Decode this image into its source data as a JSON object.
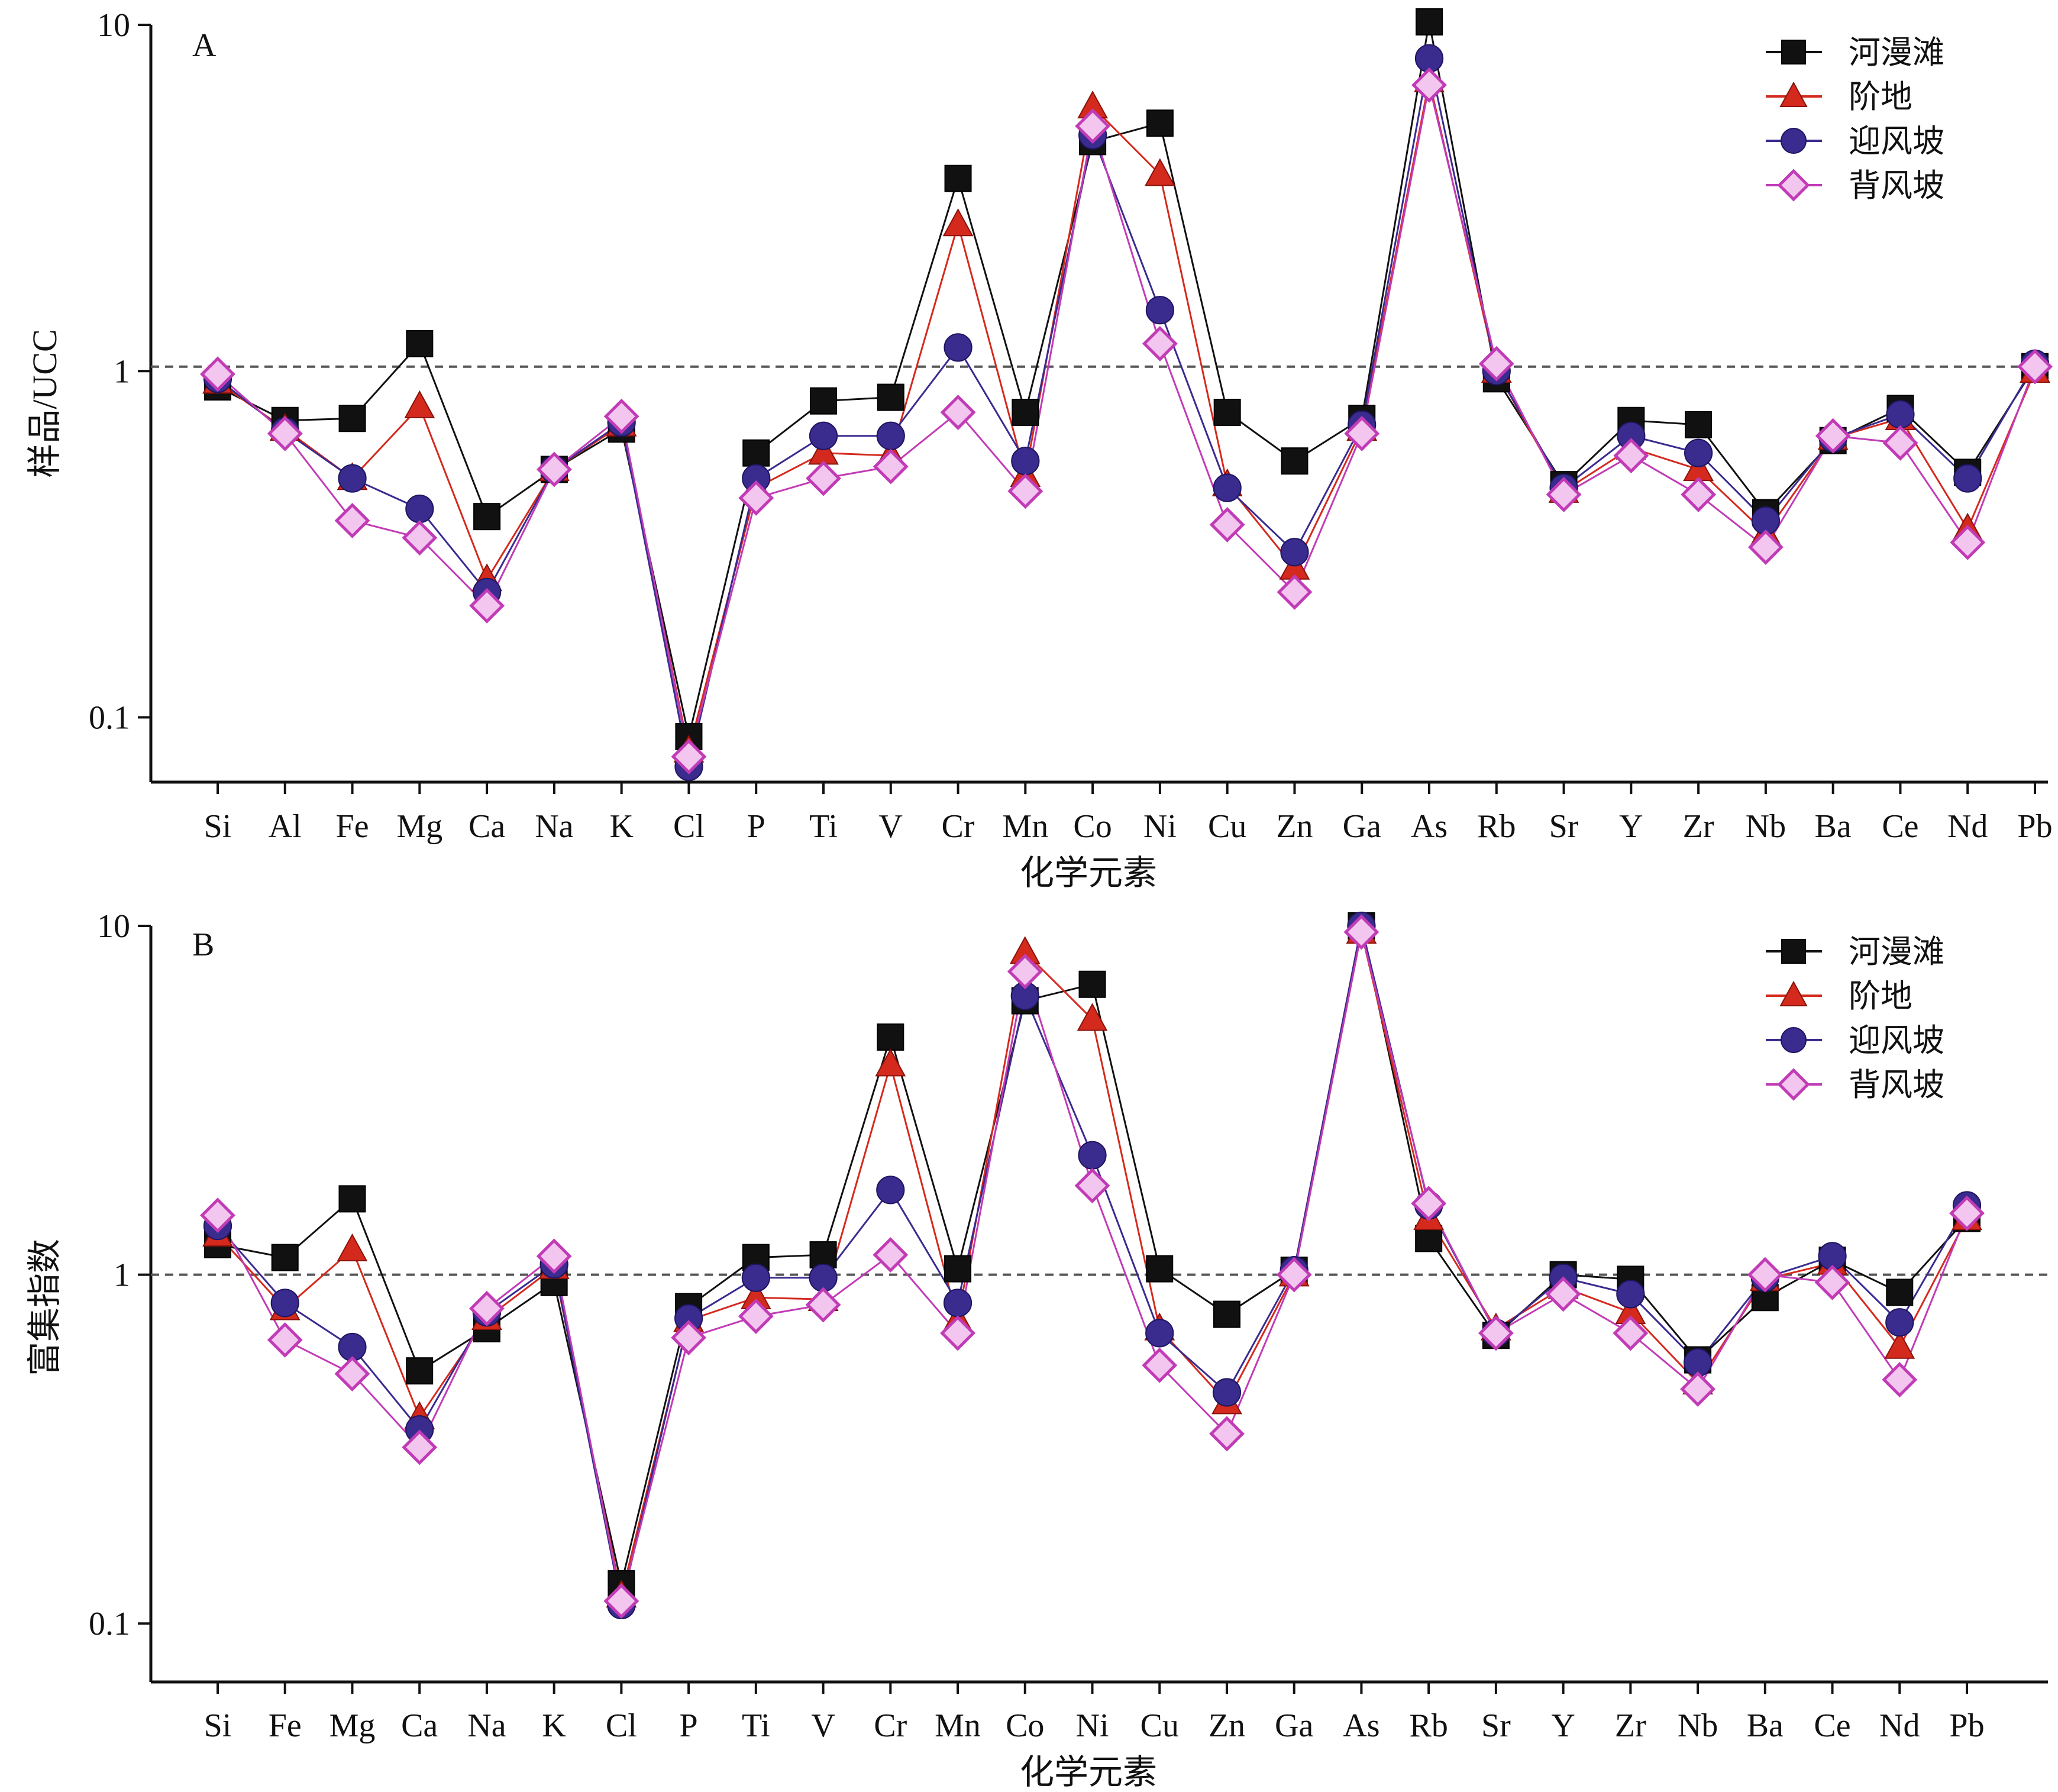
{
  "chart_data": [
    {
      "type": "line",
      "panel_label": "A",
      "ylabel": "样品/UCC",
      "xlabel": "化学元素",
      "yscale": "log",
      "ylim": [
        0.065,
        10
      ],
      "yticks": [
        {
          "value": 10,
          "label": "10"
        },
        {
          "value": 1,
          "label": "1"
        },
        {
          "value": 0.1,
          "label": "0.1"
        }
      ],
      "reference_line": 1.03,
      "legend_position": "top-right",
      "categories": [
        "Si",
        "Al",
        "Fe",
        "Mg",
        "Ca",
        "Na",
        "K",
        "Cl",
        "P",
        "Ti",
        "V",
        "Cr",
        "Mn",
        "Co",
        "Ni",
        "Cu",
        "Zn",
        "Ga",
        "As",
        "Rb",
        "Sr",
        "Y",
        "Zr",
        "Nb",
        "Ba",
        "Ce",
        "Nd",
        "Pb"
      ],
      "series": [
        {
          "name": "河漫滩",
          "color": "#111111",
          "marker": "square",
          "values": [
            0.9,
            0.72,
            0.73,
            1.2,
            0.38,
            0.52,
            0.68,
            0.088,
            0.58,
            0.82,
            0.84,
            3.6,
            0.76,
            4.6,
            5.2,
            0.76,
            0.55,
            0.73,
            10.2,
            0.95,
            0.47,
            0.72,
            0.7,
            0.39,
            0.63,
            0.78,
            0.51,
            1.03
          ]
        },
        {
          "name": "阶地",
          "color": "#d42a1e",
          "marker": "triangle",
          "values": [
            0.93,
            0.68,
            0.49,
            0.79,
            0.25,
            0.52,
            0.7,
            0.08,
            0.46,
            0.58,
            0.57,
            2.65,
            0.5,
            5.8,
            3.7,
            0.47,
            0.27,
            0.68,
            6.9,
            1.0,
            0.45,
            0.6,
            0.52,
            0.34,
            0.64,
            0.73,
            0.35,
            1.0
          ]
        },
        {
          "name": "迎风坡",
          "color": "#3a2b8f",
          "marker": "circle",
          "values": [
            0.95,
            0.67,
            0.49,
            0.4,
            0.23,
            0.52,
            0.71,
            0.072,
            0.49,
            0.65,
            0.65,
            1.17,
            0.55,
            4.8,
            1.5,
            0.46,
            0.3,
            0.7,
            8.0,
            1.0,
            0.46,
            0.65,
            0.58,
            0.37,
            0.64,
            0.75,
            0.49,
            1.05
          ]
        },
        {
          "name": "背风坡",
          "color": "#c23bb6",
          "marker": "diamond",
          "values": [
            0.98,
            0.66,
            0.37,
            0.33,
            0.21,
            0.52,
            0.74,
            0.077,
            0.43,
            0.49,
            0.53,
            0.76,
            0.45,
            5.1,
            1.2,
            0.36,
            0.23,
            0.66,
            6.7,
            1.05,
            0.44,
            0.57,
            0.44,
            0.31,
            0.65,
            0.62,
            0.32,
            1.03
          ]
        }
      ]
    },
    {
      "type": "line",
      "panel_label": "B",
      "ylabel": "富集指数",
      "xlabel": "化学元素",
      "yscale": "log",
      "ylim": [
        0.068,
        10
      ],
      "yticks": [
        {
          "value": 10,
          "label": "10"
        },
        {
          "value": 1,
          "label": "1"
        },
        {
          "value": 0.1,
          "label": "0.1"
        }
      ],
      "reference_line": 1.0,
      "legend_position": "top-right",
      "categories": [
        "Si",
        "Fe",
        "Mg",
        "Ca",
        "Na",
        "K",
        "Cl",
        "P",
        "Ti",
        "V",
        "Cr",
        "Mn",
        "Co",
        "Ni",
        "Cu",
        "Zn",
        "Ga",
        "As",
        "Rb",
        "Sr",
        "Y",
        "Zr",
        "Nb",
        "Ba",
        "Ce",
        "Nd",
        "Pb"
      ],
      "series": [
        {
          "name": "河漫滩",
          "color": "#111111",
          "marker": "square",
          "values": [
            1.22,
            1.12,
            1.65,
            0.53,
            0.7,
            0.95,
            0.13,
            0.81,
            1.12,
            1.14,
            4.8,
            1.04,
            6.1,
            6.8,
            1.04,
            0.77,
            1.03,
            10.0,
            1.27,
            0.67,
            1.0,
            0.97,
            0.57,
            0.86,
            1.1,
            0.89,
            1.45
          ]
        },
        {
          "name": "阶地",
          "color": "#d42a1e",
          "marker": "triangle",
          "values": [
            1.3,
            0.8,
            1.18,
            0.39,
            0.75,
            1.05,
            0.12,
            0.74,
            0.86,
            0.85,
            4.0,
            0.74,
            8.4,
            5.4,
            0.7,
            0.43,
            1.0,
            9.6,
            1.45,
            0.7,
            0.92,
            0.78,
            0.49,
            0.97,
            1.08,
            0.62,
            1.45
          ]
        },
        {
          "name": "迎风坡",
          "color": "#3a2b8f",
          "marker": "circle",
          "values": [
            1.38,
            0.83,
            0.62,
            0.36,
            0.78,
            1.07,
            0.113,
            0.75,
            0.98,
            0.98,
            1.75,
            0.83,
            6.3,
            2.2,
            0.68,
            0.46,
            1.03,
            10.0,
            1.58,
            0.68,
            0.98,
            0.88,
            0.56,
            0.98,
            1.13,
            0.73,
            1.58
          ]
        },
        {
          "name": "背风坡",
          "color": "#c23bb6",
          "marker": "diamond",
          "values": [
            1.48,
            0.65,
            0.52,
            0.32,
            0.8,
            1.13,
            0.116,
            0.66,
            0.76,
            0.82,
            1.14,
            0.68,
            7.4,
            1.8,
            0.55,
            0.35,
            1.0,
            9.6,
            1.6,
            0.68,
            0.88,
            0.68,
            0.47,
            1.0,
            0.95,
            0.5,
            1.5
          ]
        }
      ]
    }
  ]
}
